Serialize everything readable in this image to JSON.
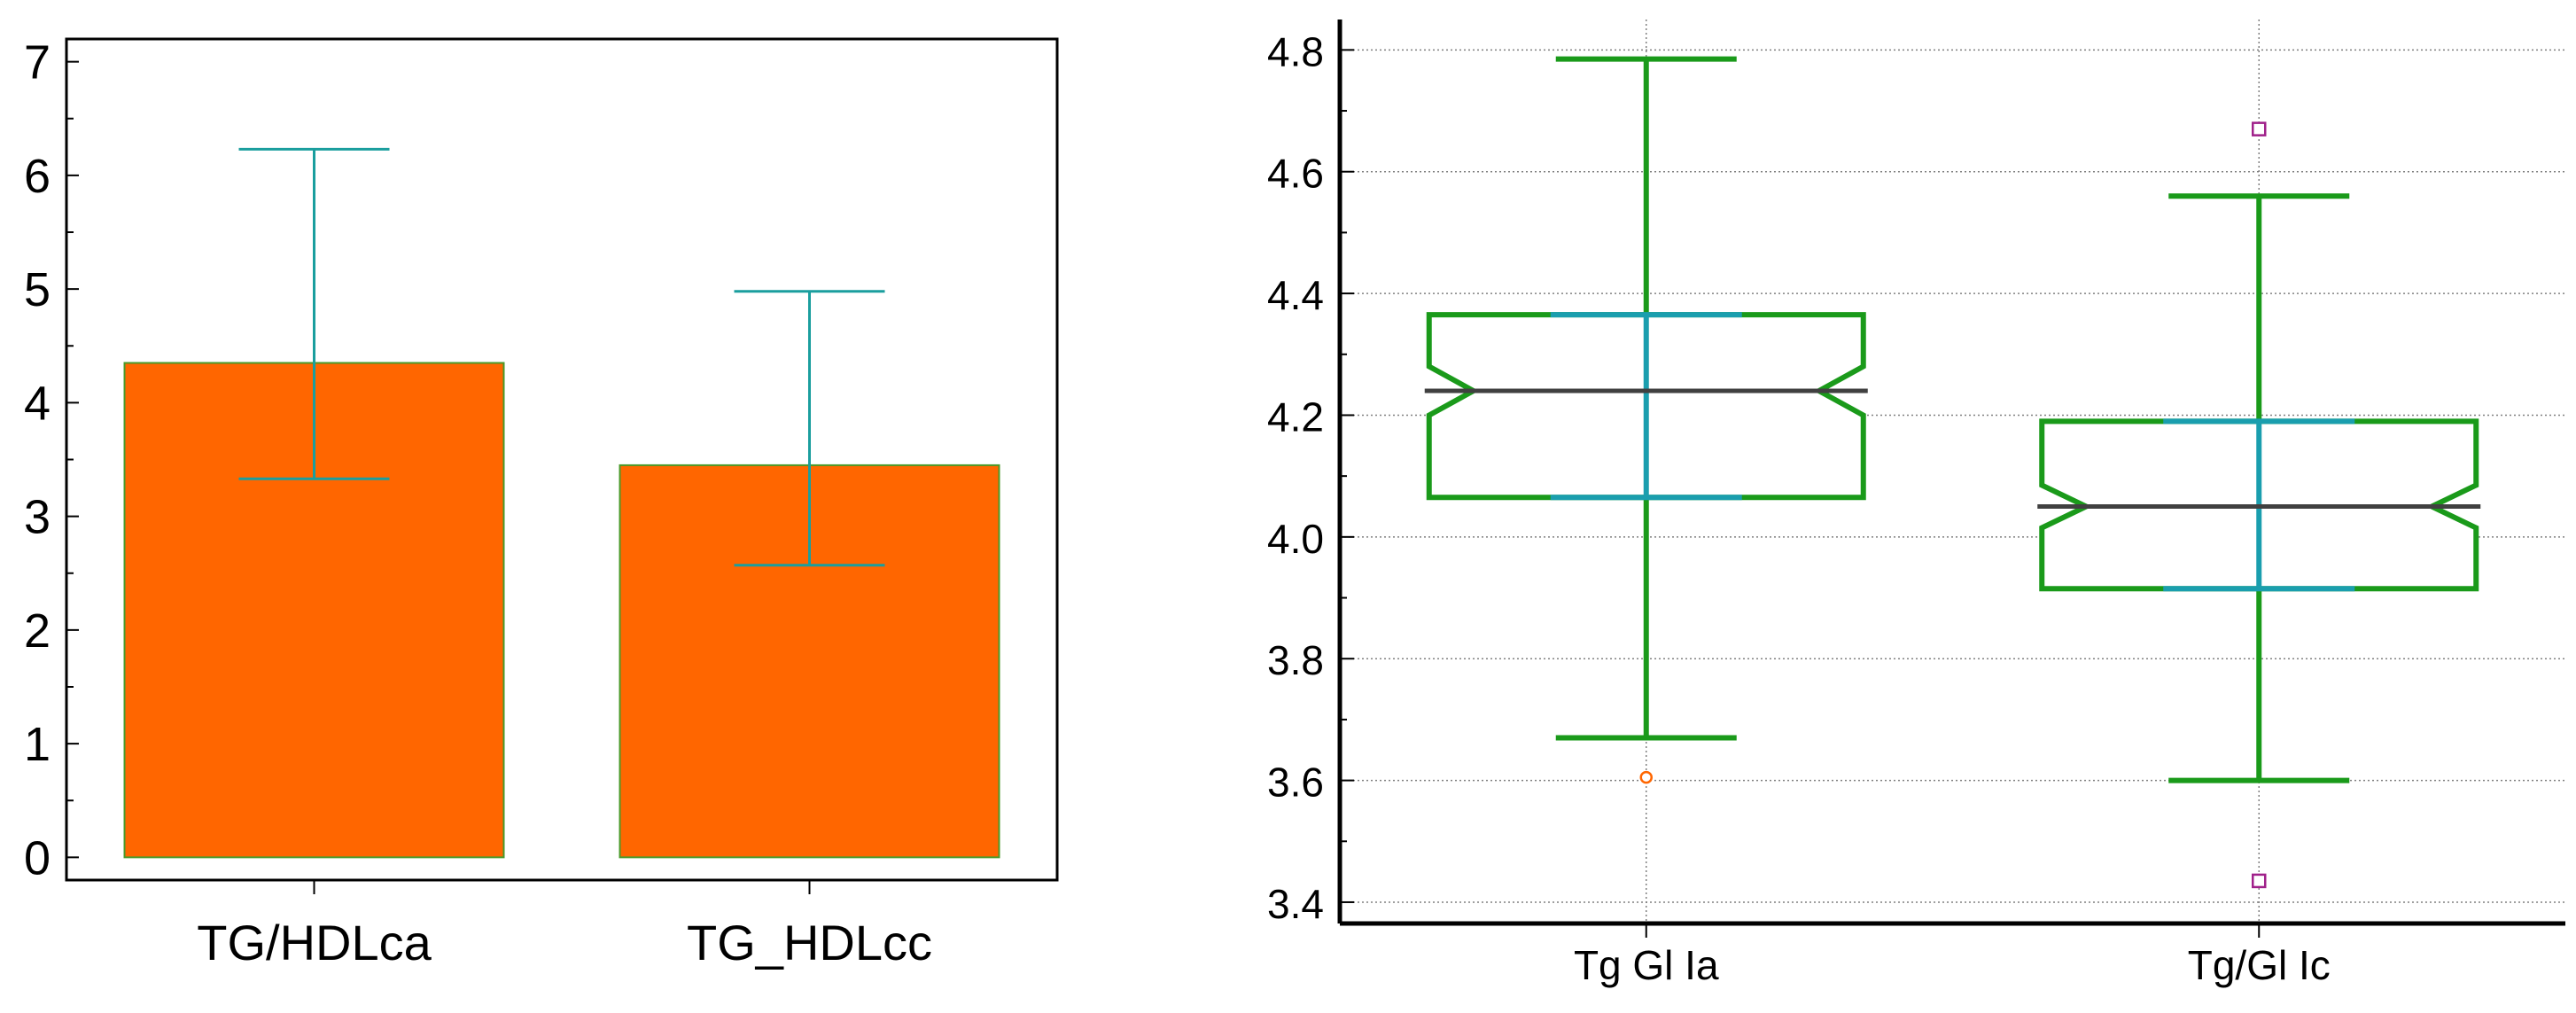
{
  "chart_data": [
    {
      "type": "bar",
      "title": "",
      "xlabel": "",
      "ylabel": "",
      "categories": [
        "TG/HDLca",
        "TG_HDLcc"
      ],
      "values": [
        4.35,
        3.45
      ],
      "error_bars": [
        {
          "lower": 3.33,
          "upper": 6.23
        },
        {
          "lower": 2.57,
          "upper": 4.98
        }
      ],
      "ylim": [
        -0.2,
        7.2
      ],
      "yticks": [
        0,
        1,
        2,
        3,
        4,
        5,
        6,
        7
      ],
      "grid": false,
      "legend": "none",
      "colors": {
        "bar_fill": "#ff6600",
        "bar_edge": "#4a9a2a",
        "error_bar": "#1a9e9e",
        "axis": "#000000"
      }
    },
    {
      "type": "boxplot",
      "title": "",
      "xlabel": "",
      "ylabel": "",
      "categories": [
        "Tg Gl Ia",
        "Tg/Gl Ic"
      ],
      "boxes": [
        {
          "whisker_low": 3.67,
          "q1": 4.065,
          "median": 4.24,
          "q3": 4.365,
          "whisker_high": 4.785,
          "notch_low": 4.2,
          "notch_high": 4.28,
          "outliers": [
            3.605
          ]
        },
        {
          "whisker_low": 3.6,
          "q1": 3.915,
          "median": 4.05,
          "q3": 4.19,
          "whisker_high": 4.56,
          "notch_low": 4.015,
          "notch_high": 4.085,
          "outliers": [
            4.67,
            3.435
          ]
        }
      ],
      "ylim": [
        3.365,
        4.85
      ],
      "yticks": [
        3.4,
        3.6,
        3.8,
        4.0,
        4.2,
        4.4,
        4.6,
        4.8
      ],
      "ytick_labels": [
        "3.4",
        "3.6",
        "3.8",
        "4.0",
        "4.2",
        "4.4",
        "4.6",
        "4.8"
      ],
      "grid": true,
      "legend": "none",
      "colors": {
        "box": "#1a9a1a",
        "iqr_center": "#1a9eae",
        "median": "#404040",
        "grid": "#808080",
        "outlier_a": "#ff6600",
        "outlier_b": "#a0208a",
        "axis": "#000000"
      }
    }
  ]
}
